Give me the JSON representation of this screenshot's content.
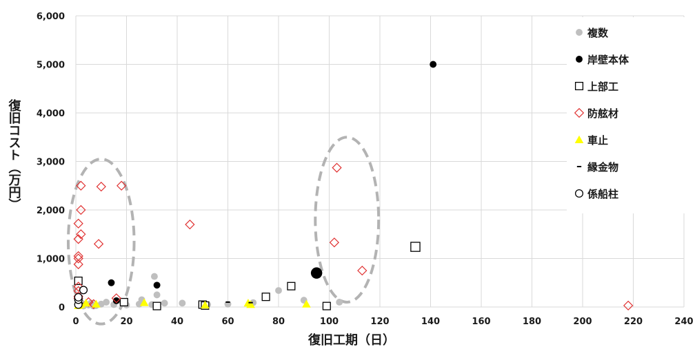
{
  "chart_data": {
    "type": "scatter",
    "xlabel": "復旧工期（日）",
    "ylabel": "復旧コスト（万円）",
    "xlim": [
      0,
      240
    ],
    "ylim": [
      0,
      6000
    ],
    "x_ticks": [
      0,
      20,
      40,
      60,
      80,
      100,
      120,
      140,
      160,
      180,
      200,
      220,
      240
    ],
    "y_ticks": [
      0,
      1000,
      2000,
      3000,
      4000,
      5000,
      6000
    ],
    "x_tick_labels": [
      "0",
      "20",
      "40",
      "60",
      "80",
      "100",
      "120",
      "140",
      "160",
      "180",
      "200",
      "220",
      "240"
    ],
    "y_tick_labels": [
      "0",
      "1,000",
      "2,000",
      "3,000",
      "4,000",
      "5,000",
      "6,000"
    ],
    "grid": true,
    "legend_position": "right",
    "series": [
      {
        "name": "複数",
        "marker": "circle-filled",
        "color": "#bfbfbf",
        "points": [
          [
            1,
            50
          ],
          [
            2,
            30
          ],
          [
            2,
            100
          ],
          [
            3,
            20
          ],
          [
            4,
            60
          ],
          [
            5,
            40
          ],
          [
            6,
            80
          ],
          [
            7,
            20
          ],
          [
            8,
            30
          ],
          [
            10,
            60
          ],
          [
            12,
            100
          ],
          [
            15,
            50
          ],
          [
            18,
            120
          ],
          [
            20,
            40
          ],
          [
            25,
            60
          ],
          [
            26,
            150
          ],
          [
            30,
            50
          ],
          [
            31,
            630
          ],
          [
            32,
            250
          ],
          [
            35,
            80
          ],
          [
            42,
            80
          ],
          [
            52,
            50
          ],
          [
            60,
            60
          ],
          [
            70,
            90
          ],
          [
            80,
            340
          ],
          [
            90,
            140
          ],
          [
            104,
            100
          ]
        ]
      },
      {
        "name": "岸壁本体",
        "marker": "circle-filled",
        "color": "#000000",
        "points": [
          [
            14,
            500
          ],
          [
            16,
            130
          ],
          [
            32,
            450
          ],
          [
            95,
            700
          ],
          [
            141,
            5000
          ]
        ]
      },
      {
        "name": "上部工",
        "marker": "square-open",
        "color": "#000000",
        "points": [
          [
            1,
            540
          ],
          [
            19,
            100
          ],
          [
            32,
            20
          ],
          [
            50,
            50
          ],
          [
            51,
            30
          ],
          [
            75,
            210
          ],
          [
            85,
            430
          ],
          [
            99,
            20
          ],
          [
            134,
            1240
          ]
        ]
      },
      {
        "name": "防舷材",
        "marker": "diamond-open",
        "color": "#e03030",
        "points": [
          [
            1,
            180
          ],
          [
            1,
            220
          ],
          [
            1,
            330
          ],
          [
            1,
            420
          ],
          [
            1,
            880
          ],
          [
            1,
            1000
          ],
          [
            1,
            1050
          ],
          [
            1,
            1400
          ],
          [
            1,
            1720
          ],
          [
            2,
            1500
          ],
          [
            2,
            2000
          ],
          [
            2,
            2500
          ],
          [
            5,
            100
          ],
          [
            7,
            60
          ],
          [
            9,
            1300
          ],
          [
            10,
            2480
          ],
          [
            16,
            180
          ],
          [
            18,
            2500
          ],
          [
            45,
            1700
          ],
          [
            102,
            1330
          ],
          [
            103,
            2870
          ],
          [
            113,
            750
          ],
          [
            218,
            30
          ]
        ]
      },
      {
        "name": "車止",
        "marker": "triangle-filled",
        "color": "#ffff00",
        "points": [
          [
            1,
            30
          ],
          [
            2,
            50
          ],
          [
            4,
            80
          ],
          [
            8,
            60
          ],
          [
            27,
            90
          ],
          [
            51,
            40
          ],
          [
            68,
            80
          ],
          [
            69,
            50
          ],
          [
            91,
            60
          ]
        ]
      },
      {
        "name": "縁金物",
        "marker": "dash",
        "color": "#000000",
        "points": [
          [
            1,
            100
          ],
          [
            2,
            80
          ],
          [
            60,
            100
          ],
          [
            69,
            90
          ]
        ]
      },
      {
        "name": "係船柱",
        "marker": "circle-open",
        "color": "#000000",
        "points": [
          [
            1,
            50
          ],
          [
            1,
            150
          ],
          [
            1,
            200
          ],
          [
            3,
            350
          ]
        ]
      }
    ],
    "highlight_ellipses": [
      {
        "cx": 10,
        "cy": 1350,
        "rx": 13,
        "ry": 1700
      },
      {
        "cx": 107,
        "cy": 1800,
        "rx": 12.5,
        "ry": 1700
      }
    ]
  }
}
